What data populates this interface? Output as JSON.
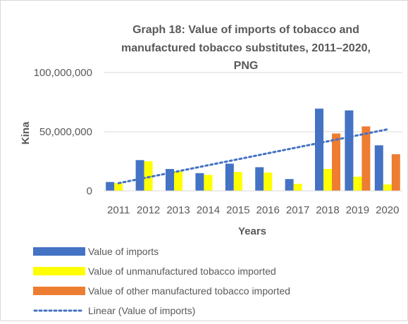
{
  "chart_data": {
    "type": "bar",
    "title_lines": [
      "Graph 18: Value of imports of tobacco and",
      "manufactured tobacco substitutes, 2011–2020,",
      "PNG"
    ],
    "xlabel": "Years",
    "ylabel": "Kina",
    "ylim": [
      0,
      100000000
    ],
    "yticks": [
      0,
      50000000,
      100000000
    ],
    "ytick_labels": [
      "0",
      "50,000,000",
      "100,000,000"
    ],
    "grid": "horizontal",
    "legend_position": "bottom",
    "categories": [
      "2011",
      "2012",
      "2013",
      "2014",
      "2015",
      "2016",
      "2017",
      "2018",
      "2019",
      "2020"
    ],
    "series": [
      {
        "name": "Value of imports",
        "color": "#4472c4",
        "values": [
          7500000,
          26000000,
          18500000,
          15000000,
          23000000,
          20000000,
          10000000,
          69500000,
          68000000,
          38500000
        ]
      },
      {
        "name": "Value of unmanufactured tobacco imported",
        "color": "#ffff00",
        "values": [
          6500000,
          25000000,
          16500000,
          13500000,
          16000000,
          15500000,
          6000000,
          18500000,
          12000000,
          5500000
        ]
      },
      {
        "name": "Value of other manufactured tobacco imported",
        "color": "#ed7d31",
        "values": [
          0,
          0,
          0,
          0,
          0,
          0,
          0,
          48500000,
          54500000,
          31000000
        ]
      }
    ],
    "trendline": {
      "name": "Linear (Value of imports)",
      "color": "#4472c4",
      "start": 6500000,
      "end": 52000000
    }
  }
}
